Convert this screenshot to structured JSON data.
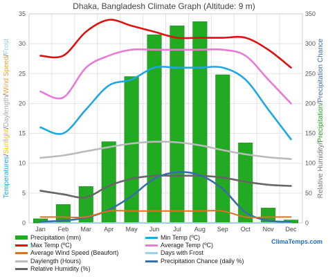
{
  "page": {
    "title": "Dhaka, Bangladesh Climate Graph (Altitude: 9 m)",
    "brand": "ClimaTemps.com"
  },
  "chart_data": {
    "type": "bar",
    "title": "Dhaka, Bangladesh Climate Graph (Altitude: 9 m)",
    "categories": [
      "Jan",
      "Feb",
      "Mar",
      "Apr",
      "May",
      "Jun",
      "Jul",
      "Aug",
      "Sep",
      "Oct",
      "Nov",
      "Dec"
    ],
    "left_axis": {
      "ylim": [
        0,
        35
      ],
      "ticks": [
        0,
        5,
        10,
        15,
        20,
        25,
        30,
        35
      ],
      "label_parts": [
        {
          "text": "Temperatures",
          "color": "#1ea7e6"
        },
        {
          "text": "/",
          "color": "#555555"
        },
        {
          "text": "Sunlight",
          "color": "#f2c400"
        },
        {
          "text": "/",
          "color": "#555555"
        },
        {
          "text": "Daylength",
          "color": "#aaaaaa"
        },
        {
          "text": "/",
          "color": "#555555"
        },
        {
          "text": "Wind Speed",
          "color": "#e8a33c"
        },
        {
          "text": "/",
          "color": "#555555"
        },
        {
          "text": "Frost",
          "color": "#8fd0e8"
        }
      ]
    },
    "right_axis": {
      "ylim": [
        0,
        350
      ],
      "ticks": [
        0,
        50,
        100,
        150,
        200,
        250,
        300,
        350
      ],
      "label_parts": [
        {
          "text": "Relative Humidity",
          "color": "#777777"
        },
        {
          "text": "/",
          "color": "#555555"
        },
        {
          "text": "Precipitation",
          "color": "#1b9e1b"
        },
        {
          "text": "/",
          "color": "#555555"
        },
        {
          "text": "Precipitation Chance",
          "color": "#3a6ea5"
        }
      ]
    },
    "grid": true,
    "series": [
      {
        "name": "Precipitation (mm)",
        "kind": "bar",
        "axis": "right",
        "color": "#22aa22",
        "values": [
          7,
          31,
          61,
          136,
          245,
          315,
          330,
          337,
          248,
          134,
          25,
          5
        ]
      },
      {
        "name": "Min Temp (ºC)",
        "kind": "line",
        "axis": "left",
        "color": "#1ea7e6",
        "values": [
          16,
          15,
          19,
          23,
          24,
          26,
          26,
          26,
          26,
          24,
          19,
          14
        ]
      },
      {
        "name": "Max Temp (ºC)",
        "kind": "line",
        "axis": "left",
        "color": "#dd1111",
        "values": [
          28,
          28,
          32,
          34,
          33,
          32,
          31,
          31,
          31,
          31,
          29,
          26
        ]
      },
      {
        "name": "Average Temp (ºC)",
        "kind": "line",
        "axis": "left",
        "color": "#e879d6",
        "values": [
          22,
          21,
          26,
          28,
          29,
          29,
          29,
          29,
          29,
          28,
          24,
          20
        ]
      },
      {
        "name": "Average Wind Speed (Beaufort)",
        "kind": "line",
        "axis": "left",
        "color": "#e07020",
        "values": [
          1,
          1,
          1,
          2,
          2,
          2,
          2,
          2,
          2,
          1,
          1,
          1
        ]
      },
      {
        "name": "Days with Frost",
        "kind": "line",
        "axis": "left",
        "color": "#9bd4ea",
        "values": [
          0,
          0,
          0,
          0,
          0,
          0,
          0,
          0,
          0,
          0,
          0,
          0
        ]
      },
      {
        "name": "Daylength (Hours)",
        "kind": "line",
        "axis": "left",
        "color": "#bbbbbb",
        "values": [
          10.9,
          11.3,
          12,
          12.7,
          13.3,
          13.6,
          13.5,
          13,
          12.2,
          11.5,
          11,
          10.7
        ]
      },
      {
        "name": "Precipitation Chance (daily %)",
        "kind": "line",
        "axis": "right",
        "color": "#3a6ea5",
        "values": [
          2,
          4,
          9,
          22,
          45,
          74,
          85,
          80,
          57,
          18,
          4,
          2
        ]
      },
      {
        "name": "Relative Humidity (%)",
        "kind": "line",
        "axis": "right",
        "color": "#666666",
        "values": [
          54,
          48,
          43,
          62,
          74,
          79,
          79,
          79,
          76,
          69,
          64,
          62
        ]
      }
    ]
  }
}
